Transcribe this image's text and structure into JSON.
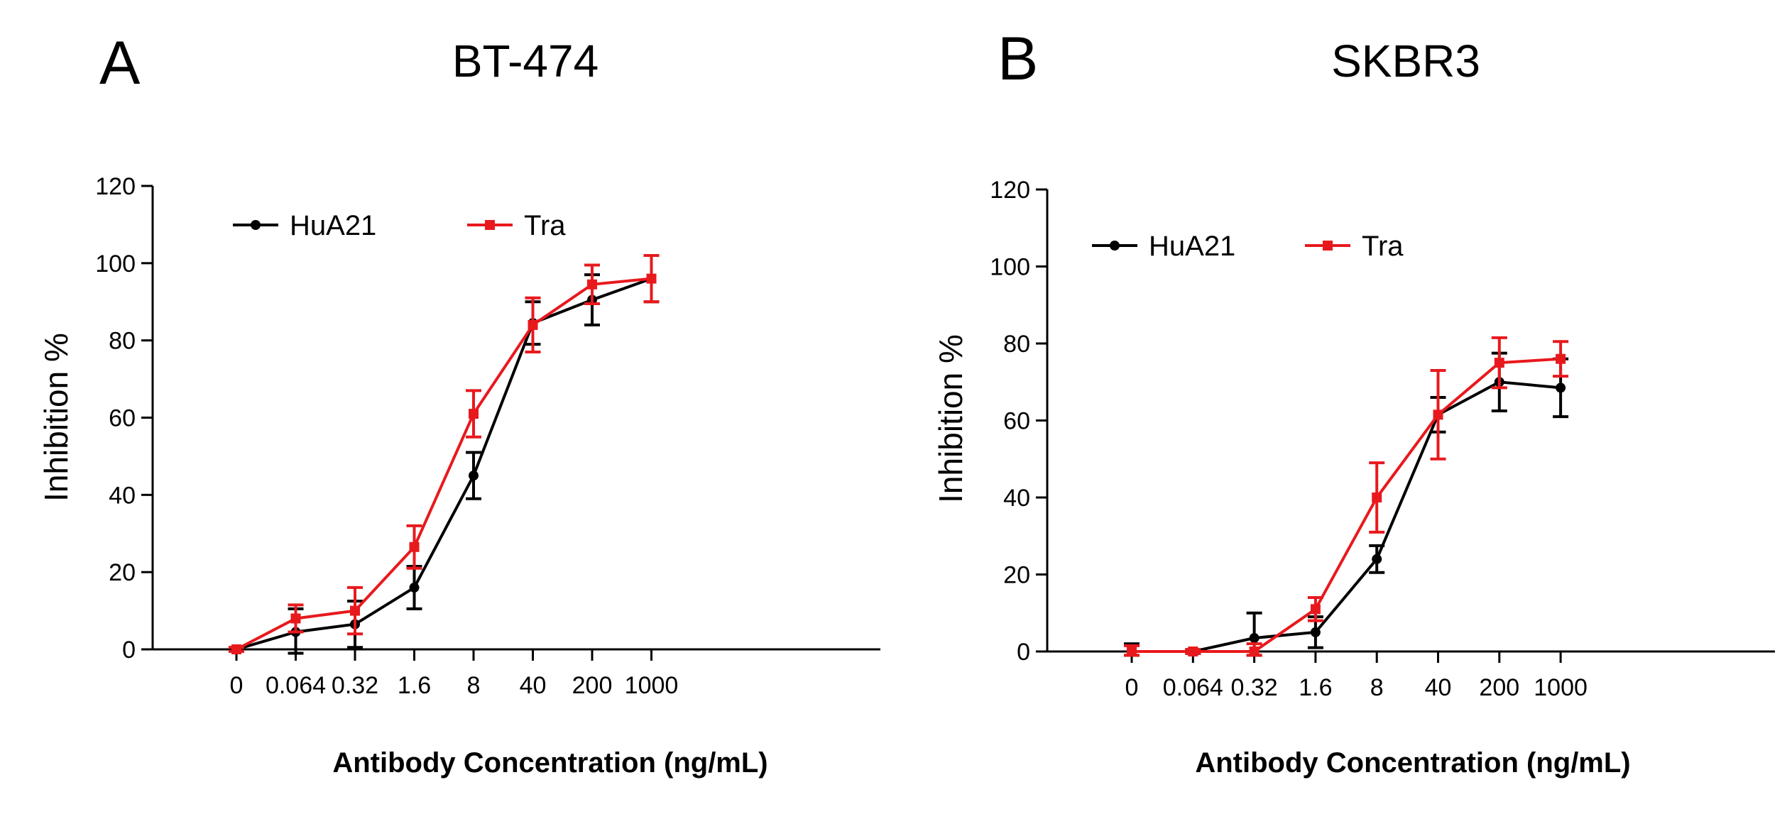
{
  "chart_data": [
    {
      "panel_label": "A",
      "title": "BT-474",
      "type": "line",
      "categories": [
        "0",
        "0.064",
        "0.32",
        "1.6",
        "8",
        "40",
        "200",
        "1000"
      ],
      "ylabel": "Inhibition %",
      "xlabel": "Antibody Concentration (ng/mL)",
      "ylim": [
        0,
        120
      ],
      "yticks": [
        0,
        20,
        40,
        60,
        80,
        100,
        120
      ],
      "legend_position": "top-left",
      "series": [
        {
          "name": "HuA21",
          "color": "#000000",
          "marker": "circle",
          "values": [
            0,
            4.5,
            6.5,
            16,
            45,
            84.5,
            90.5,
            96
          ],
          "errors": [
            0.5,
            6,
            6,
            5.5,
            6,
            5.5,
            6.5,
            6
          ]
        },
        {
          "name": "Tra",
          "color": "#e8191d",
          "marker": "square",
          "values": [
            0,
            8,
            10,
            26.5,
            61,
            84,
            94.5,
            96
          ],
          "errors": [
            0.5,
            3.5,
            6,
            5.5,
            6,
            7,
            5,
            6
          ]
        }
      ]
    },
    {
      "panel_label": "B",
      "title": "SKBR3",
      "type": "line",
      "categories": [
        "0",
        "0.064",
        "0.32",
        "1.6",
        "8",
        "40",
        "200",
        "1000"
      ],
      "ylabel": "Inhibition %",
      "xlabel": "Antibody Concentration (ng/mL)",
      "ylim": [
        0,
        120
      ],
      "yticks": [
        0,
        20,
        40,
        60,
        80,
        100,
        120
      ],
      "legend_position": "top-left",
      "series": [
        {
          "name": "HuA21",
          "color": "#000000",
          "marker": "circle",
          "values": [
            0,
            0,
            3.5,
            5,
            24,
            61.5,
            70,
            68.5
          ],
          "errors": [
            2,
            0.5,
            6.5,
            4,
            3.5,
            4.5,
            7.5,
            7.5
          ]
        },
        {
          "name": "Tra",
          "color": "#e8191d",
          "marker": "square",
          "values": [
            0,
            0,
            0,
            11,
            40,
            61.5,
            75,
            76
          ],
          "errors": [
            1.5,
            0.5,
            2,
            3,
            9,
            11.5,
            6.5,
            4.5
          ]
        }
      ]
    }
  ]
}
